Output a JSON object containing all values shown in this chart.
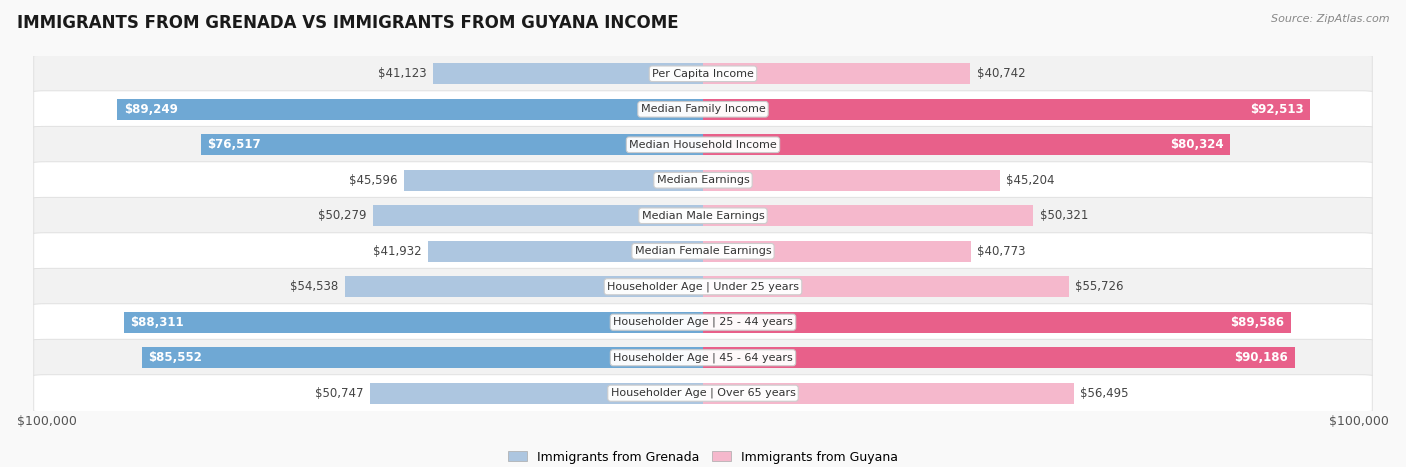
{
  "title": "IMMIGRANTS FROM GRENADA VS IMMIGRANTS FROM GUYANA INCOME",
  "source": "Source: ZipAtlas.com",
  "categories": [
    "Per Capita Income",
    "Median Family Income",
    "Median Household Income",
    "Median Earnings",
    "Median Male Earnings",
    "Median Female Earnings",
    "Householder Age | Under 25 years",
    "Householder Age | 25 - 44 years",
    "Householder Age | 45 - 64 years",
    "Householder Age | Over 65 years"
  ],
  "grenada_values": [
    41123,
    89249,
    76517,
    45596,
    50279,
    41932,
    54538,
    88311,
    85552,
    50747
  ],
  "guyana_values": [
    40742,
    92513,
    80324,
    45204,
    50321,
    40773,
    55726,
    89586,
    90186,
    56495
  ],
  "grenada_labels": [
    "$41,123",
    "$89,249",
    "$76,517",
    "$45,596",
    "$50,279",
    "$41,932",
    "$54,538",
    "$88,311",
    "$85,552",
    "$50,747"
  ],
  "guyana_labels": [
    "$40,742",
    "$92,513",
    "$80,324",
    "$45,204",
    "$50,321",
    "$40,773",
    "$55,726",
    "$89,586",
    "$90,186",
    "$56,495"
  ],
  "max_value": 100000,
  "grenada_color_light": "#adc6e0",
  "grenada_color_dark": "#6fa8d4",
  "guyana_color_light": "#f5b8cc",
  "guyana_color_dark": "#e8608a",
  "bar_height": 0.6,
  "background_color": "#f9f9f9",
  "row_even_color": "#f2f2f2",
  "row_odd_color": "#ffffff",
  "row_border_color": "#dddddd",
  "legend_grenada": "Immigrants from Grenada",
  "legend_guyana": "Immigrants from Guyana",
  "xlabel_left": "$100,000",
  "xlabel_right": "$100,000",
  "inside_label_threshold": 0.65,
  "label_fontsize": 8.5,
  "cat_fontsize": 8.0,
  "title_fontsize": 12,
  "source_fontsize": 8
}
